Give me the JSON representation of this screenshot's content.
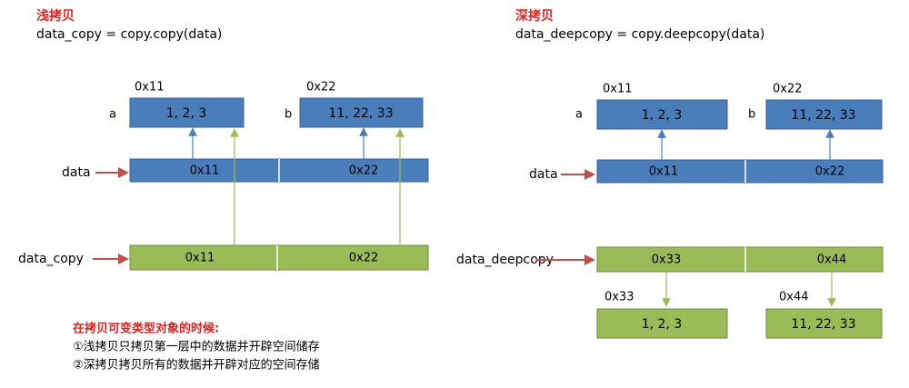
{
  "shallow": {
    "title": "浅拷贝",
    "code": "data_copy = copy.copy(data)",
    "objects": [
      {
        "address": "0x11",
        "name": "a",
        "content": "1, 2, 3"
      },
      {
        "address": "0x22",
        "name": "b",
        "content": "11, 22, 33"
      }
    ],
    "outer": {
      "label": "data",
      "cells": [
        "0x11",
        "0x22"
      ]
    },
    "copy": {
      "label": "data_copy",
      "cells": [
        "0x11",
        "0x22"
      ]
    }
  },
  "deep": {
    "title": "深拷贝",
    "code": "data_deepcopy = copy.deepcopy(data)",
    "objects": [
      {
        "address": "0x11",
        "name": "a",
        "content": "1, 2, 3"
      },
      {
        "address": "0x22",
        "name": "b",
        "content": "11, 22, 33"
      }
    ],
    "outer": {
      "label": "data",
      "cells": [
        "0x11",
        "0x22"
      ]
    },
    "copy": {
      "label": "data_deepcopy",
      "cells": [
        "0x33",
        "0x44"
      ]
    },
    "new_objects": [
      {
        "address": "0x33",
        "content": "1, 2, 3"
      },
      {
        "address": "0x44",
        "content": "11, 22, 33"
      }
    ]
  },
  "note": {
    "heading": "在拷贝可变类型对象的时候:",
    "lines": [
      "①浅拷贝只拷贝第一层中的数据并开辟空间储存",
      "②深拷贝拷贝所有的数据并开辟对应的空间存储"
    ]
  }
}
